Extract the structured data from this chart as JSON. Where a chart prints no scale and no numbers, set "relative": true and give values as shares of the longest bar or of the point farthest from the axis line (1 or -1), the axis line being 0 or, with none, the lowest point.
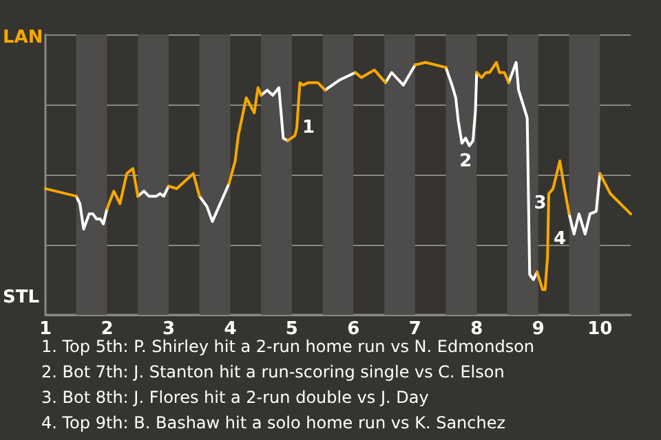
{
  "chart_data": {
    "type": "line",
    "relative": true,
    "xlim": [
      1,
      10.5
    ],
    "xticks": [
      1,
      2,
      3,
      4,
      5,
      6,
      7,
      8,
      9,
      10
    ],
    "tick_labels": "x",
    "grid": "y",
    "marker": "none",
    "series": [
      {
        "color": "#ffffff",
        "x": [
          1.5,
          1.56,
          1.62,
          1.71,
          1.77,
          1.83,
          1.89,
          1.94,
          2,
          null,
          2.5,
          2.6,
          2.68,
          2.8,
          2.86,
          2.92,
          3,
          null,
          3.5,
          3.62,
          3.71,
          3.98,
          null,
          4.5,
          4.6,
          4.69,
          4.79,
          4.86,
          4.93,
          null,
          5.54,
          5.77,
          6.03,
          null,
          6.52,
          6.62,
          6.81,
          7,
          null,
          7.5,
          7.6,
          7.66,
          7.7,
          7.76,
          7.82,
          7.88,
          7.94,
          7.98,
          8,
          null,
          8.52,
          8.64,
          8.68,
          8.77,
          8.82,
          8.83,
          8.85,
          8.86,
          8.92,
          8.98,
          null,
          9.5,
          9.58,
          9.66,
          9.76,
          9.84,
          9.94,
          10
        ],
        "values": [
          0.47,
          0.44,
          0.34,
          0.4,
          0.4,
          0.38,
          0.38,
          0.36,
          0.42,
          null,
          0.47,
          0.49,
          0.47,
          0.47,
          0.48,
          0.47,
          0.51,
          null,
          0.47,
          0.43,
          0.37,
          0.52,
          null,
          0.87,
          0.89,
          0.87,
          0.9,
          0.7,
          0.69,
          null,
          0.89,
          0.93,
          0.96,
          null,
          0.92,
          0.96,
          0.91,
          0.99,
          null,
          0.98,
          0.91,
          0.86,
          0.77,
          0.68,
          0.7,
          0.67,
          0.69,
          0.81,
          0.96,
          null,
          0.92,
          1,
          0.89,
          0.82,
          0.78,
          0.63,
          0.31,
          0.16,
          0.14,
          0.17,
          null,
          0.4,
          0.32,
          0.4,
          0.32,
          0.4,
          0.41,
          0.56
        ]
      },
      {
        "color": "#f5a800",
        "x": [
          1,
          1.5,
          null,
          2,
          2.11,
          2.21,
          2.32,
          2.42,
          2.5,
          null,
          3,
          3.13,
          3.4,
          3.5,
          null,
          3.98,
          4.08,
          4.13,
          4.26,
          4.39,
          4.45,
          4.5,
          null,
          4.93,
          5.05,
          5.08,
          5.13,
          5.18,
          5.27,
          5.42,
          5.54,
          null,
          6.03,
          6.13,
          6.34,
          6.52,
          null,
          7,
          7.17,
          7.5,
          null,
          8,
          8.08,
          8.15,
          8.21,
          8.32,
          8.37,
          8.45,
          8.52,
          null,
          8.98,
          9.07,
          9.11,
          9.15,
          9.17,
          9.24,
          9.35,
          9.41,
          9.5,
          null,
          10,
          10.17,
          10.5
        ],
        "values": [
          0.5,
          0.47,
          null,
          0.42,
          0.49,
          0.44,
          0.56,
          0.58,
          0.47,
          null,
          0.51,
          0.5,
          0.56,
          0.47,
          null,
          0.52,
          0.61,
          0.71,
          0.86,
          0.8,
          0.9,
          0.87,
          null,
          0.69,
          0.71,
          0.74,
          0.92,
          0.91,
          0.92,
          0.92,
          0.89,
          null,
          0.96,
          0.94,
          0.97,
          0.92,
          null,
          0.99,
          1,
          0.98,
          null,
          0.96,
          0.94,
          0.96,
          0.96,
          1,
          0.96,
          0.96,
          0.92,
          null,
          0.17,
          0.1,
          0.1,
          0.23,
          0.48,
          0.5,
          0.61,
          0.52,
          0.4,
          null,
          0.56,
          0.48,
          0.4
        ]
      }
    ],
    "bands": [
      {
        "axis": "x",
        "from": 1.5,
        "to": 2,
        "color": "#4d4c4a"
      },
      {
        "axis": "x",
        "from": 2.5,
        "to": 3,
        "color": "#4d4c4a"
      },
      {
        "axis": "x",
        "from": 3.5,
        "to": 4,
        "color": "#4d4c4a"
      },
      {
        "axis": "x",
        "from": 4.5,
        "to": 5,
        "color": "#4d4c4a"
      },
      {
        "axis": "x",
        "from": 5.5,
        "to": 6,
        "color": "#4d4c4a"
      },
      {
        "axis": "x",
        "from": 6.5,
        "to": 7,
        "color": "#4d4c4a"
      },
      {
        "axis": "x",
        "from": 7.5,
        "to": 8,
        "color": "#4d4c4a"
      },
      {
        "axis": "x",
        "from": 8.5,
        "to": 9,
        "color": "#4d4c4a"
      },
      {
        "axis": "x",
        "from": 9.5,
        "to": 10,
        "color": "#4d4c4a"
      }
    ],
    "annotations": [
      "LAN",
      "STL",
      {
        "text": "1",
        "x": 5.08,
        "y": 0.74
      },
      {
        "text": "2",
        "x": 7.82,
        "y": 0.7
      },
      {
        "text": "3",
        "x": 8.84,
        "y": 0.44
      },
      {
        "text": "4",
        "x": 9.16,
        "y": 0.3
      },
      "1. Top 5th: P. Shirley hit a 2-run home run vs N. Edmondson",
      "2. Bot 7th: J. Stanton hit a run-scoring single vs C. Elson",
      "3. Bot 8th: J. Flores hit a 2-run double vs J. Day",
      "4. Top 9th: B. Bashaw hit a solo home run vs K. Sanchez"
    ]
  }
}
